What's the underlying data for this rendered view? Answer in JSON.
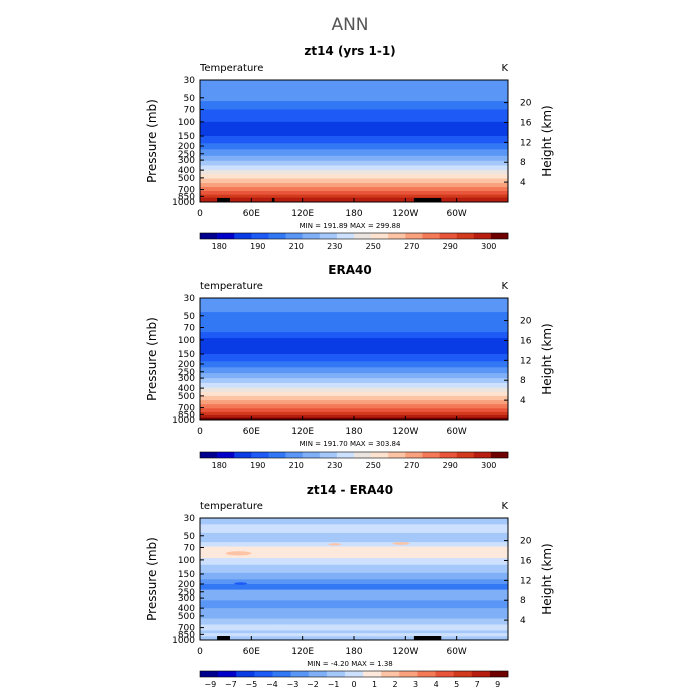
{
  "figure": {
    "main_title": "ANN"
  },
  "chart_data": [
    {
      "type": "heatmap",
      "title": "zt14 (yrs 1-1)",
      "left_label": "Temperature",
      "units": "K",
      "ylabel": "Pressure (mb)",
      "y2label": "Height (km)",
      "xticks": [
        "0",
        "60E",
        "120E",
        "180",
        "120W",
        "60W"
      ],
      "xtick_lon": [
        0,
        60,
        120,
        180,
        240,
        300
      ],
      "xlim": [
        0,
        360
      ],
      "yticks": [
        "30",
        "50",
        "70",
        "100",
        "150",
        "200",
        "250",
        "300",
        "400",
        "500",
        "700",
        "850",
        "1000"
      ],
      "ytick_p": [
        30,
        50,
        70,
        100,
        150,
        200,
        250,
        300,
        400,
        500,
        700,
        850,
        1000
      ],
      "ylim": [
        1000,
        30
      ],
      "y2ticks": [
        "20",
        "16",
        "12",
        "8",
        "4"
      ],
      "y2tick_km": [
        20,
        16,
        12,
        8,
        4
      ],
      "stats": "MIN = 191.89   MAX = 299.88",
      "colorbar": {
        "labels": [
          "180",
          "190",
          "210",
          "230",
          "250",
          "270",
          "290",
          "300"
        ],
        "colors": [
          "#00008f",
          "#0000c8",
          "#0a3ce6",
          "#1e5af5",
          "#3278f5",
          "#5a96f5",
          "#7eaff7",
          "#a5c8fa",
          "#cde0fd",
          "#ece4de",
          "#fde3cf",
          "#fcc3a4",
          "#f9a07c",
          "#f47a57",
          "#e8553a",
          "#d23a1e",
          "#b71e10",
          "#6e0000"
        ]
      },
      "profile": [
        {
          "p": 30,
          "c": 5
        },
        {
          "p": 40,
          "c": 5
        },
        {
          "p": 55,
          "c": 4
        },
        {
          "p": 70,
          "c": 3
        },
        {
          "p": 85,
          "c": 3
        },
        {
          "p": 100,
          "c": 2
        },
        {
          "p": 125,
          "c": 2
        },
        {
          "p": 150,
          "c": 3
        },
        {
          "p": 185,
          "c": 4
        },
        {
          "p": 220,
          "c": 5
        },
        {
          "p": 265,
          "c": 6
        },
        {
          "p": 305,
          "c": 7
        },
        {
          "p": 350,
          "c": 8
        },
        {
          "p": 400,
          "c": 9
        },
        {
          "p": 450,
          "c": 10
        },
        {
          "p": 510,
          "c": 11
        },
        {
          "p": 580,
          "c": 12
        },
        {
          "p": 650,
          "c": 13
        },
        {
          "p": 730,
          "c": 14
        },
        {
          "p": 810,
          "c": 15
        },
        {
          "p": 880,
          "c": 16
        },
        {
          "p": 950,
          "c": 16
        }
      ],
      "features": [],
      "terrain": [
        [
          20,
          35
        ],
        [
          28,
          33
        ],
        [
          84,
          87
        ],
        [
          250,
          282
        ]
      ]
    },
    {
      "type": "heatmap",
      "title": "ERA40",
      "left_label": "temperature",
      "units": "K",
      "ylabel": "Pressure (mb)",
      "y2label": "Height (km)",
      "xticks": [
        "0",
        "60E",
        "120E",
        "180",
        "120W",
        "60W"
      ],
      "xtick_lon": [
        0,
        60,
        120,
        180,
        240,
        300
      ],
      "xlim": [
        0,
        360
      ],
      "yticks": [
        "30",
        "50",
        "70",
        "100",
        "150",
        "200",
        "250",
        "300",
        "400",
        "500",
        "700",
        "850",
        "1000"
      ],
      "ytick_p": [
        30,
        50,
        70,
        100,
        150,
        200,
        250,
        300,
        400,
        500,
        700,
        850,
        1000
      ],
      "ylim": [
        1000,
        30
      ],
      "y2ticks": [
        "20",
        "16",
        "12",
        "8",
        "4"
      ],
      "y2tick_km": [
        20,
        16,
        12,
        8,
        4
      ],
      "stats": "MIN = 191.70   MAX = 303.84",
      "colorbar": {
        "labels": [
          "180",
          "190",
          "210",
          "230",
          "250",
          "270",
          "290",
          "300"
        ],
        "colors": [
          "#00008f",
          "#0000c8",
          "#0a3ce6",
          "#1e5af5",
          "#3278f5",
          "#5a96f5",
          "#7eaff7",
          "#a5c8fa",
          "#cde0fd",
          "#ece4de",
          "#fde3cf",
          "#fcc3a4",
          "#f9a07c",
          "#f47a57",
          "#e8553a",
          "#d23a1e",
          "#b71e10",
          "#6e0000"
        ]
      },
      "profile": [
        {
          "p": 30,
          "c": 5
        },
        {
          "p": 45,
          "c": 4
        },
        {
          "p": 65,
          "c": 4
        },
        {
          "p": 80,
          "c": 3
        },
        {
          "p": 95,
          "c": 2
        },
        {
          "p": 120,
          "c": 2
        },
        {
          "p": 150,
          "c": 3
        },
        {
          "p": 185,
          "c": 4
        },
        {
          "p": 220,
          "c": 5
        },
        {
          "p": 260,
          "c": 6
        },
        {
          "p": 300,
          "c": 7
        },
        {
          "p": 345,
          "c": 8
        },
        {
          "p": 395,
          "c": 9
        },
        {
          "p": 445,
          "c": 10
        },
        {
          "p": 500,
          "c": 11
        },
        {
          "p": 565,
          "c": 12
        },
        {
          "p": 635,
          "c": 13
        },
        {
          "p": 715,
          "c": 14
        },
        {
          "p": 795,
          "c": 15
        },
        {
          "p": 865,
          "c": 16
        },
        {
          "p": 935,
          "c": 17
        }
      ],
      "features": [],
      "terrain": []
    },
    {
      "type": "heatmap",
      "title": "zt14 - ERA40",
      "left_label": "temperature",
      "units": "K",
      "ylabel": "Pressure (mb)",
      "y2label": "Height (km)",
      "xticks": [
        "0",
        "60E",
        "120E",
        "180",
        "120W",
        "60W"
      ],
      "xtick_lon": [
        0,
        60,
        120,
        180,
        240,
        300
      ],
      "xlim": [
        0,
        360
      ],
      "yticks": [
        "30",
        "50",
        "70",
        "100",
        "150",
        "200",
        "250",
        "300",
        "400",
        "500",
        "700",
        "850",
        "1000"
      ],
      "ytick_p": [
        30,
        50,
        70,
        100,
        150,
        200,
        250,
        300,
        400,
        500,
        700,
        850,
        1000
      ],
      "ylim": [
        1000,
        30
      ],
      "y2ticks": [
        "20",
        "16",
        "12",
        "8",
        "4"
      ],
      "y2tick_km": [
        20,
        16,
        12,
        8,
        4
      ],
      "stats": "MIN =   -4.20   MAX =    1.38",
      "colorbar": {
        "labels": [
          "−9",
          "−7",
          "−5",
          "−4",
          "−3",
          "−2",
          "−1",
          "0",
          "1",
          "2",
          "3",
          "4",
          "5",
          "7",
          "9"
        ],
        "colors": [
          "#00008f",
          "#0000c8",
          "#0a3ce6",
          "#1e5af5",
          "#3278f5",
          "#5a96f5",
          "#7eaff7",
          "#a5c8fa",
          "#cde0fd",
          "#fde8dc",
          "#fcc3a4",
          "#f9a07c",
          "#f47a57",
          "#e8553a",
          "#d23a1e",
          "#b71e10",
          "#6e0000"
        ]
      },
      "profile": [
        {
          "p": 30,
          "c": 7
        },
        {
          "p": 36,
          "c": 8
        },
        {
          "p": 46,
          "c": 7
        },
        {
          "p": 60,
          "c": 8
        },
        {
          "p": 68,
          "c": 9
        },
        {
          "p": 95,
          "c": 8
        },
        {
          "p": 115,
          "c": 7
        },
        {
          "p": 145,
          "c": 6
        },
        {
          "p": 175,
          "c": 5
        },
        {
          "p": 200,
          "c": 4
        },
        {
          "p": 235,
          "c": 6
        },
        {
          "p": 320,
          "c": 5
        },
        {
          "p": 400,
          "c": 6
        },
        {
          "p": 540,
          "c": 7
        },
        {
          "p": 640,
          "c": 8
        },
        {
          "p": 760,
          "c": 7
        },
        {
          "p": 820,
          "c": 8
        },
        {
          "p": 900,
          "c": 7
        }
      ],
      "features": [
        {
          "lon0": 30,
          "lon1": 60,
          "p0": 78,
          "p1": 88,
          "c": 10
        },
        {
          "lon0": 40,
          "lon1": 55,
          "p0": 190,
          "p1": 205,
          "c": 3
        },
        {
          "lon0": 150,
          "lon1": 165,
          "p0": 62,
          "p1": 66,
          "c": 10
        },
        {
          "lon0": 225,
          "lon1": 245,
          "p0": 60,
          "p1": 65,
          "c": 10
        },
        {
          "lon0": 75,
          "lon1": 110,
          "p0": 720,
          "p1": 760,
          "c": 8
        },
        {
          "lon0": 190,
          "lon1": 240,
          "p0": 850,
          "p1": 900,
          "c": 8
        }
      ],
      "terrain": [
        [
          20,
          35
        ],
        [
          250,
          282
        ]
      ]
    }
  ]
}
